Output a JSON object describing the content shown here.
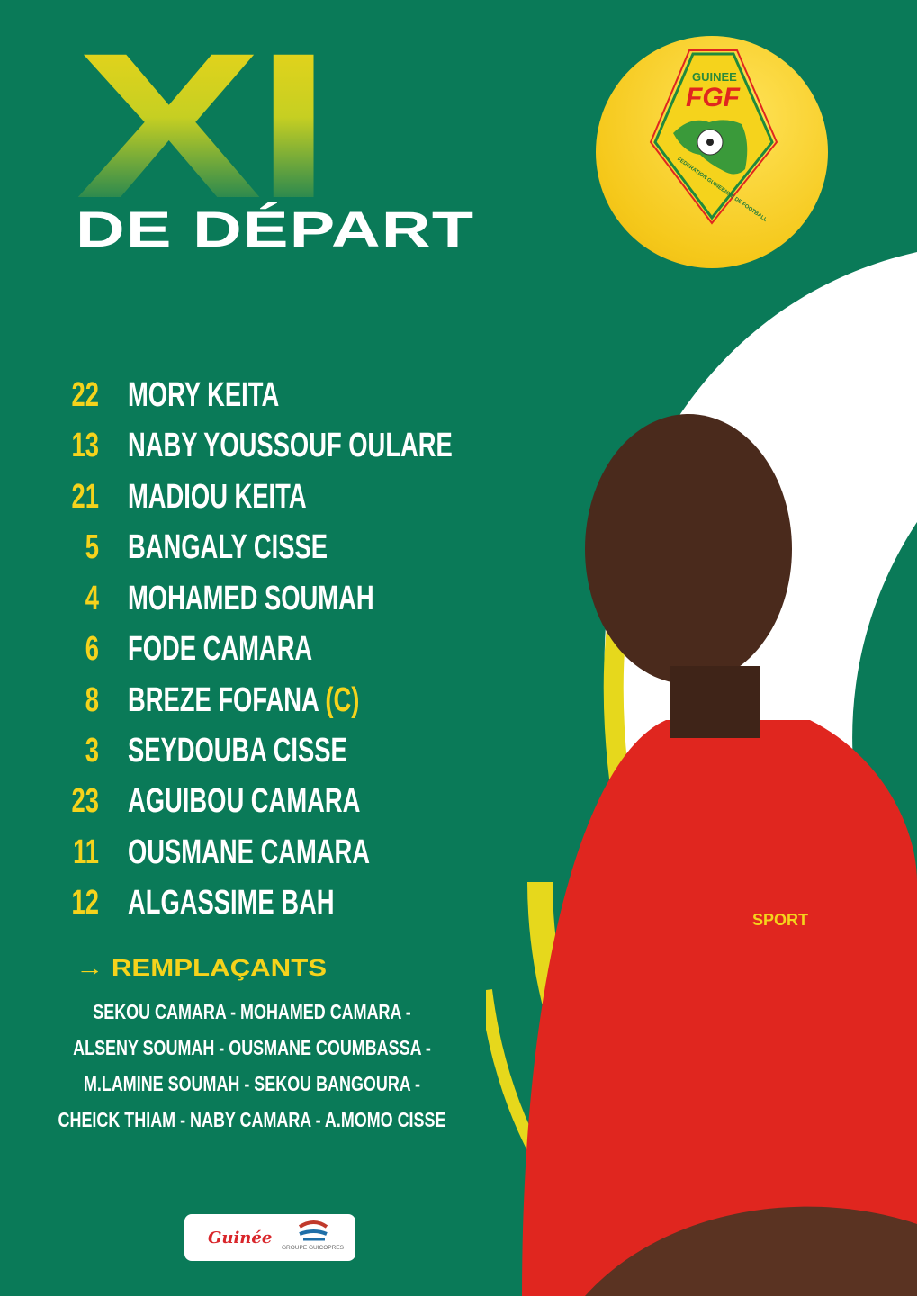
{
  "title": {
    "big": "XI",
    "sub": "DE DÉPART"
  },
  "badge": {
    "top": "GUINEE",
    "initials": "FGF",
    "ring": "FEDERATION GUINEENNE DE FOOTBALL"
  },
  "colors": {
    "background": "#0a7a58",
    "accent": "#f5d31c",
    "jersey": "#e0261f"
  },
  "starting_xi": [
    {
      "number": "22",
      "name": "MORY KEITA"
    },
    {
      "number": "13",
      "name": "NABY YOUSSOUF OULARE"
    },
    {
      "number": "21",
      "name": "MADIOU KEITA"
    },
    {
      "number": "5",
      "name": "BANGALY CISSE"
    },
    {
      "number": "4",
      "name": "MOHAMED SOUMAH"
    },
    {
      "number": "6",
      "name": "FODE CAMARA"
    },
    {
      "number": "8",
      "name": "BREZE FOFANA",
      "captain": "(C)"
    },
    {
      "number": "3",
      "name": "SEYDOUBA CISSE"
    },
    {
      "number": "23",
      "name": "AGUIBOU CAMARA"
    },
    {
      "number": "11",
      "name": "OUSMANE CAMARA"
    },
    {
      "number": "12",
      "name": "ALGASSIME BAH"
    }
  ],
  "substitutes": {
    "arrow": "→",
    "title": "REMPLAÇANTS",
    "lines": [
      "SEKOU CAMARA - MOHAMED CAMARA -",
      "ALSENY SOUMAH - OUSMANE COUMBASSA -",
      "M.LAMINE SOUMAH - SEKOU BANGOURA -",
      "CHEICK THIAM - NABY CAMARA - A.MOMO CISSE"
    ]
  },
  "sponsors": {
    "left": "Guinée",
    "right": "GROUPE GUICOPRES"
  },
  "jersey_text": "SPORT"
}
